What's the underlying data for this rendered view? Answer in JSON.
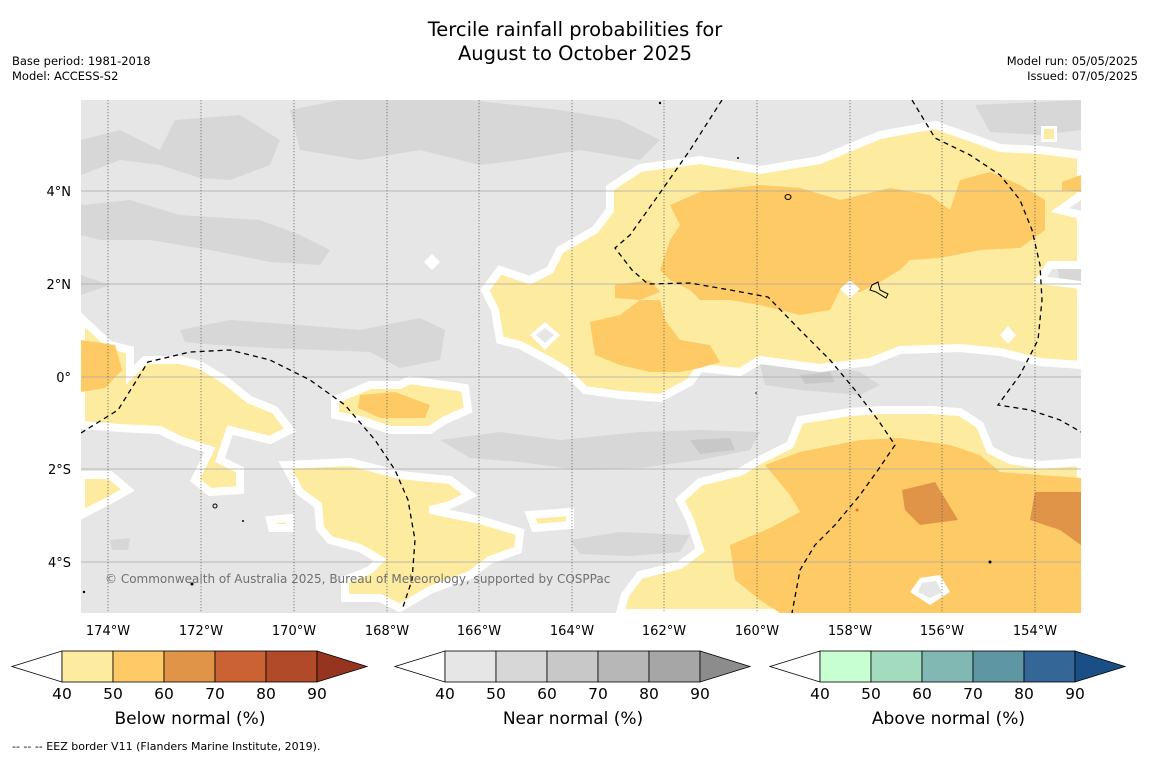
{
  "title": {
    "line1": "Tercile rainfall probabilities for",
    "line2": "August to October 2025"
  },
  "meta": {
    "base_period": "Base period: 1981-2018",
    "model": "Model: ACCESS-S2",
    "model_run": "Model run: 05/05/2025",
    "issued": "Issued: 07/05/2025"
  },
  "map": {
    "copyright": "© Commonwealth of Australia 2025, Bureau of Meteorology, supported by COSPPac",
    "lon_labels": [
      "174°W",
      "172°W",
      "170°W",
      "168°W",
      "166°W",
      "164°W",
      "162°W",
      "160°W",
      "158°W",
      "156°W",
      "154°W"
    ],
    "lat_labels": [
      "4°N",
      "2°N",
      "0°",
      "2°S",
      "4°S"
    ],
    "lon_range": [
      -174.6,
      -152.9
    ],
    "lat_range": [
      5.9,
      -5.2
    ]
  },
  "colorbars": [
    {
      "title": "Below normal (%)",
      "ticks": [
        "40",
        "50",
        "60",
        "70",
        "80",
        "90"
      ],
      "colors": [
        "#fdeba0",
        "#fdca66",
        "#e09448",
        "#ca6234",
        "#b04a28",
        "#973420"
      ]
    },
    {
      "title": "Near normal (%)",
      "ticks": [
        "40",
        "50",
        "60",
        "70",
        "80",
        "90"
      ],
      "colors": [
        "#e6e6e6",
        "#d7d7d7",
        "#c8c8c8",
        "#b7b7b7",
        "#a6a6a6",
        "#8c8c8c"
      ]
    },
    {
      "title": "Above normal (%)",
      "ticks": [
        "40",
        "50",
        "60",
        "70",
        "80",
        "90"
      ],
      "colors": [
        "#c8ffd0",
        "#a3dbbf",
        "#82b8b3",
        "#5f96a3",
        "#346697",
        "#1a4f85"
      ]
    }
  ],
  "footnote": "--  --  -- EEZ border V11 (Flanders Marine Institute, 2019)."
}
